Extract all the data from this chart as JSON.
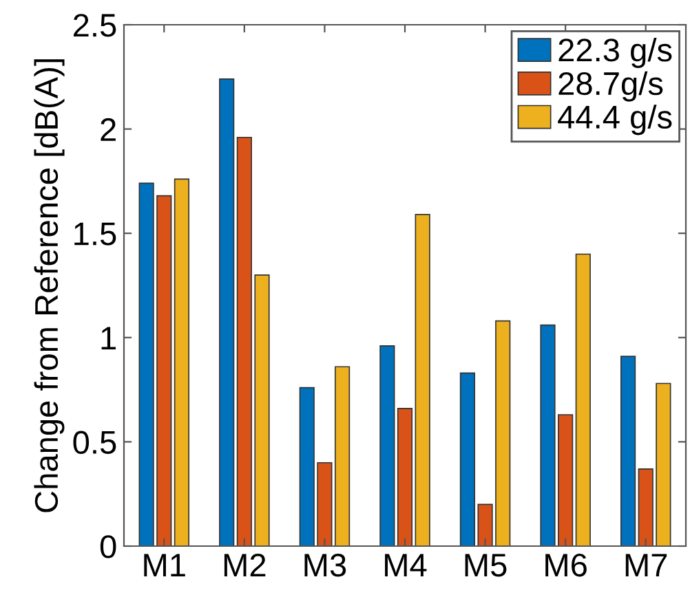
{
  "chart_data": {
    "type": "bar",
    "ylabel": "Change from Reference [dB(A)]",
    "categories": [
      "M1",
      "M2",
      "M3",
      "M4",
      "M5",
      "M6",
      "M7"
    ],
    "series": [
      {
        "name": "22.3 g/s",
        "color": "#0072bd",
        "values": [
          1.74,
          2.24,
          0.76,
          0.96,
          0.83,
          1.06,
          0.91
        ]
      },
      {
        "name": "28.7g/s",
        "color": "#d95319",
        "values": [
          1.68,
          1.96,
          0.4,
          0.66,
          0.2,
          0.63,
          0.37
        ]
      },
      {
        "name": "44.4 g/s",
        "color": "#edb120",
        "values": [
          1.76,
          1.3,
          0.86,
          1.59,
          1.08,
          1.4,
          0.78
        ]
      }
    ],
    "ylim": [
      0,
      2.5
    ],
    "yticks": [
      0,
      0.5,
      1,
      1.5,
      2,
      2.5
    ],
    "legend": "top right",
    "grid": false
  }
}
